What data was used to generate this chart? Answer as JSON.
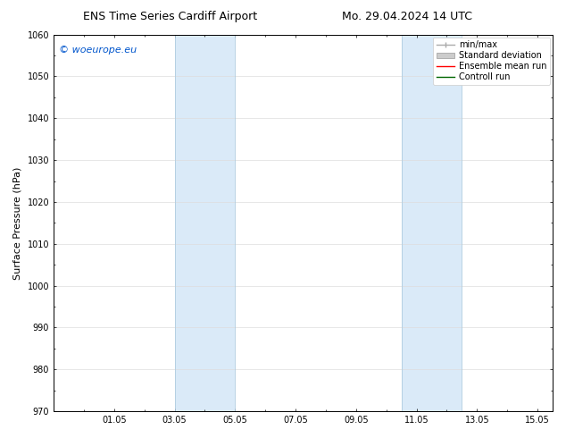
{
  "title_left": "ENS Time Series Cardiff Airport",
  "title_right": "Mo. 29.04.2024 14 UTC",
  "ylabel": "Surface Pressure (hPa)",
  "ylim": [
    970,
    1060
  ],
  "yticks": [
    970,
    980,
    990,
    1000,
    1010,
    1020,
    1030,
    1040,
    1050,
    1060
  ],
  "xtick_positions": [
    2,
    4,
    6,
    8,
    10,
    12,
    14,
    16
  ],
  "xtick_labels": [
    "01.05",
    "03.05",
    "05.05",
    "07.05",
    "09.05",
    "11.05",
    "13.05",
    "15.05"
  ],
  "xlim": [
    0,
    16.5
  ],
  "band1": [
    4.0,
    6.0
  ],
  "band2": [
    11.5,
    13.5
  ],
  "band_color": "#daeaf8",
  "band_edge_color": "#b0cce0",
  "watermark_text": "© woeurope.eu",
  "watermark_color": "#0055cc",
  "background_color": "#ffffff",
  "grid_color": "#dddddd",
  "title_fontsize": 9,
  "axis_label_fontsize": 8,
  "tick_fontsize": 7,
  "legend_fontsize": 7,
  "watermark_fontsize": 8
}
